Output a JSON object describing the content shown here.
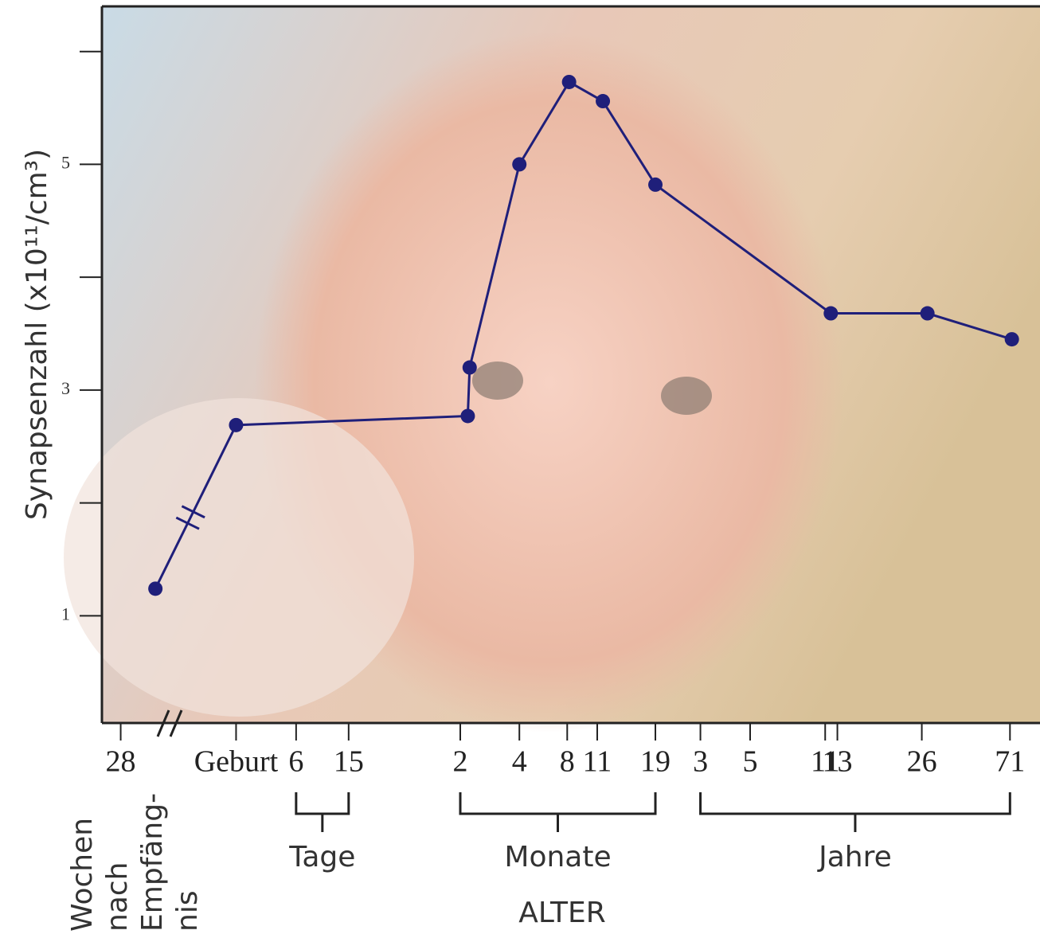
{
  "chart_data": {
    "type": "line",
    "y_label": "Synapsenzahl (x10¹¹/cm³)",
    "x_label": "ALTER",
    "x_note": [
      "Wochen",
      "nach",
      "Empfäng-",
      "nis"
    ],
    "groups": [
      "Tage",
      "Monate",
      "Jahre"
    ],
    "xlim": [
      0,
      100
    ],
    "xticks": [
      {
        "value": 2.0,
        "label": "28"
      },
      {
        "value": 14.3,
        "label": "Geburt"
      },
      {
        "value": 20.7,
        "label": "6"
      },
      {
        "value": 26.3,
        "label": "15"
      },
      {
        "value": 38.2,
        "label": "2"
      },
      {
        "value": 44.5,
        "label": "4"
      },
      {
        "value": 49.6,
        "label": "8"
      },
      {
        "value": 52.8,
        "label": "11"
      },
      {
        "value": 59.0,
        "label": "19"
      },
      {
        "value": 63.8,
        "label": "3"
      },
      {
        "value": 69.1,
        "label": "5"
      },
      {
        "value": 77.1,
        "label": "11"
      },
      {
        "value": 78.4,
        "label": "13"
      },
      {
        "value": 87.4,
        "label": "26"
      },
      {
        "value": 96.8,
        "label": "71"
      }
    ],
    "ylim": [
      0.05,
      6.4
    ],
    "yticks": [
      1,
      3,
      5
    ],
    "minor_yticks": [
      2,
      4,
      6
    ],
    "series": [
      {
        "color": "#1f1f7a",
        "x": [
          5.7,
          14.3,
          39.0,
          39.2,
          44.5,
          49.8,
          53.4,
          59.0,
          77.7,
          88.0,
          97.0
        ],
        "values": [
          1.24,
          2.69,
          2.77,
          3.2,
          5.0,
          5.73,
          5.56,
          4.82,
          3.68,
          3.68,
          3.45
        ]
      }
    ]
  }
}
